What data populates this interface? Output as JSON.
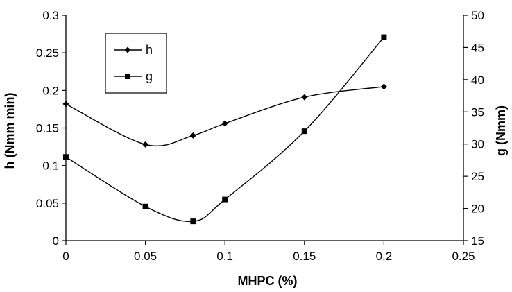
{
  "chart_data": {
    "type": "line",
    "title": "",
    "xlabel": "MHPC (%)",
    "ylabel_left": "h (Nmm min)",
    "ylabel_right": "g (Nmm)",
    "xlim": [
      0,
      0.25
    ],
    "xticks": [
      "0",
      "0.05",
      "0.1",
      "0.15",
      "0.2",
      "0.25"
    ],
    "ylim_left": [
      0,
      0.3
    ],
    "yticks_left": [
      "0",
      "0.05",
      "0.1",
      "0.15",
      "0.2",
      "0.25",
      "0.3"
    ],
    "ylim_right": [
      15,
      50
    ],
    "yticks_right": [
      "15",
      "20",
      "25",
      "30",
      "35",
      "40",
      "45",
      "50"
    ],
    "grid": false,
    "legend_position": "top-left",
    "series": [
      {
        "name": "h",
        "axis": "left",
        "marker": "diamond",
        "smooth": true,
        "x": [
          0,
          0.05,
          0.08,
          0.1,
          0.15,
          0.2
        ],
        "y": [
          0.182,
          0.128,
          0.14,
          0.156,
          0.191,
          0.205
        ]
      },
      {
        "name": "g",
        "axis": "right",
        "marker": "square",
        "smooth": true,
        "x": [
          0,
          0.05,
          0.08,
          0.1,
          0.15,
          0.2
        ],
        "y": [
          28.0,
          20.3,
          18.0,
          21.4,
          32.0,
          46.6
        ]
      }
    ],
    "colors": {
      "line": "#000000",
      "background": "#ffffff"
    }
  }
}
